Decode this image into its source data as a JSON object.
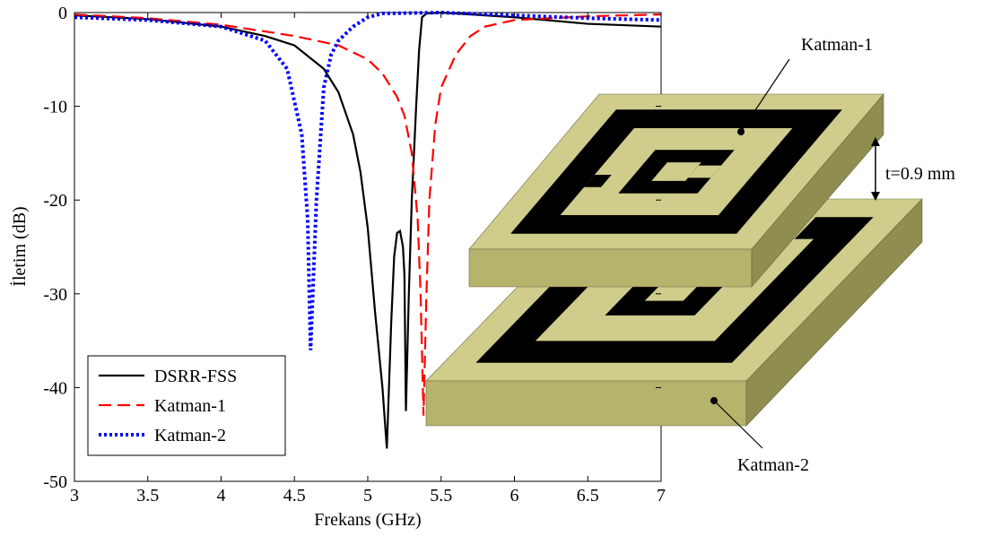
{
  "chart_data": {
    "type": "line",
    "xlabel": "Frekans (GHz)",
    "ylabel": "İletim (dB)",
    "xlim": [
      3,
      7
    ],
    "ylim": [
      -50,
      0
    ],
    "xticks": [
      3,
      3.5,
      4,
      4.5,
      5,
      5.5,
      6,
      6.5,
      7
    ],
    "yticks": [
      -50,
      -40,
      -30,
      -20,
      -10,
      0
    ],
    "grid": false,
    "legend": "lower left",
    "series": [
      {
        "name": "DSRR-FSS",
        "color": "#000000",
        "line_style": "solid",
        "x": [
          3,
          3.5,
          4,
          4.3,
          4.5,
          4.7,
          4.8,
          4.9,
          4.95,
          5.0,
          5.05,
          5.1,
          5.13,
          5.16,
          5.18,
          5.2,
          5.22,
          5.24,
          5.25,
          5.26,
          5.28,
          5.3,
          5.33,
          5.35,
          5.37,
          5.4,
          5.5,
          6,
          6.5,
          7
        ],
        "values": [
          -0.3,
          -0.7,
          -1.5,
          -2.5,
          -3.5,
          -6,
          -8.5,
          -13,
          -17,
          -23,
          -32,
          -40,
          -46.5,
          -33,
          -26,
          -23.5,
          -23.3,
          -25,
          -28,
          -42.5,
          -30,
          -20,
          -10,
          -4,
          -0.5,
          -0.1,
          0,
          -0.5,
          -1.2,
          -1.5
        ]
      },
      {
        "name": "Katman-1",
        "color": "#ff0000",
        "line_style": "dashed",
        "x": [
          3,
          3.5,
          4,
          4.5,
          4.8,
          5.0,
          5.1,
          5.2,
          5.25,
          5.3,
          5.34,
          5.36,
          5.38,
          5.4,
          5.42,
          5.46,
          5.5,
          5.6,
          5.7,
          5.8,
          6.0,
          6.5,
          7
        ],
        "values": [
          -0.2,
          -0.6,
          -1.3,
          -2.5,
          -3.5,
          -5,
          -6.5,
          -9,
          -11,
          -15,
          -22,
          -30,
          -43,
          -30,
          -20,
          -12,
          -8,
          -4.5,
          -2.5,
          -1.5,
          -0.8,
          -0.4,
          -0.2
        ]
      },
      {
        "name": "Katman-2",
        "color": "#0000ff",
        "line_style": "dotted",
        "x": [
          3,
          3.5,
          4,
          4.3,
          4.45,
          4.55,
          4.59,
          4.61,
          4.63,
          4.65,
          4.7,
          4.75,
          4.8,
          4.9,
          5.0,
          5.1,
          5.5,
          6,
          6.5,
          7
        ],
        "values": [
          -0.5,
          -0.8,
          -1.5,
          -3,
          -6,
          -13,
          -22,
          -36,
          -28,
          -20,
          -8,
          -4.5,
          -3,
          -1.5,
          -0.5,
          -0.1,
          0,
          -0.3,
          -0.6,
          -0.8
        ]
      }
    ],
    "annotations": [
      "Katman-1",
      "t=0.9 mm",
      "Katman-2"
    ]
  }
}
